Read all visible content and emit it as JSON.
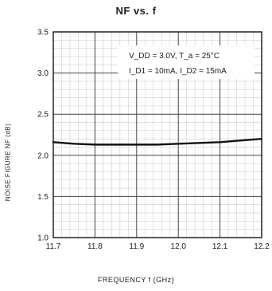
{
  "chart_data": {
    "type": "line",
    "title": "NF vs. f",
    "xlabel": "FREQUENCY f (GHz)",
    "ylabel": "NOISE FIGURE NF (dB)",
    "xlim": [
      11.7,
      12.2
    ],
    "ylim": [
      1.0,
      3.5
    ],
    "x_ticks": [
      "11.7",
      "11.8",
      "11.9",
      "12.0",
      "12.1",
      "12.2"
    ],
    "y_ticks": [
      "1.0",
      "1.5",
      "2.0",
      "2.5",
      "3.0",
      "3.5"
    ],
    "grid": true,
    "annotations": [
      "V_DD = 3.0V, T_a = 25°C",
      "I_D1 = 10mA, I_D2 = 15mA"
    ],
    "series": [
      {
        "x": [
          11.7,
          11.75,
          11.8,
          11.85,
          11.9,
          11.95,
          12.0,
          12.05,
          12.1,
          12.15,
          12.2
        ],
        "values": [
          2.16,
          2.14,
          2.13,
          2.13,
          2.13,
          2.13,
          2.14,
          2.15,
          2.16,
          2.18,
          2.2
        ]
      }
    ]
  }
}
